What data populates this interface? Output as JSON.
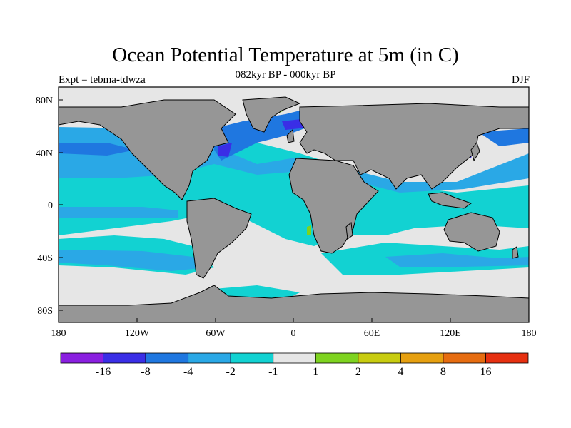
{
  "title": "Ocean Potential Temperature at 5m (in C)",
  "subtitle": "082kyr BP - 000kyr BP",
  "left_label": "Expt = tebma-tdwza",
  "right_label": "DJF",
  "lat_ticks": [
    "80N",
    "40N",
    "0",
    "40S",
    "80S"
  ],
  "lon_ticks": [
    "180",
    "120W",
    "60W",
    "0",
    "60E",
    "120E",
    "180"
  ],
  "colorbar": {
    "colors": [
      "#8a1fe0",
      "#3a2ee6",
      "#1f77e0",
      "#2aa8e6",
      "#12d2d2",
      "#e6e6e6",
      "#7ed320",
      "#c8cc10",
      "#e6a010",
      "#e66c10",
      "#e63010"
    ],
    "labels": [
      "-16",
      "-8",
      "-4",
      "-2",
      "-1",
      "1",
      "2",
      "4",
      "8",
      "16"
    ]
  },
  "land_color": "#969696",
  "no_change_color": "#e6e6e6"
}
